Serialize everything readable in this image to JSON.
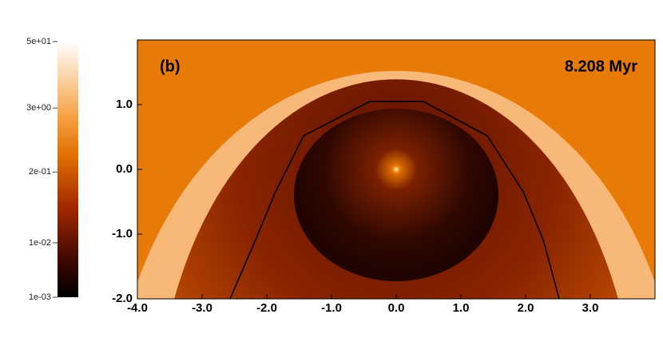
{
  "chart_data": {
    "type": "image",
    "annotations": [
      "(b)",
      "8.208 Myr"
    ],
    "xlim": [
      -4,
      4
    ],
    "ylim": [
      -2,
      2
    ],
    "xticks": [
      {
        "value": -4,
        "label": "-4.0"
      },
      {
        "value": -3,
        "label": "-3.0"
      },
      {
        "value": -2,
        "label": "-2.0"
      },
      {
        "value": -1,
        "label": "-1.0"
      },
      {
        "value": 0,
        "label": "0.0"
      },
      {
        "value": 1,
        "label": "1.0"
      },
      {
        "value": 2,
        "label": "2.0"
      },
      {
        "value": 3,
        "label": "3.0"
      }
    ],
    "yticks": [
      {
        "value": -2,
        "label": "-2.0"
      },
      {
        "value": -1,
        "label": "-1.0"
      },
      {
        "value": 0,
        "label": "0.0"
      },
      {
        "value": 1,
        "label": "1.0"
      }
    ],
    "colorbar": {
      "clim": [
        0.001,
        50
      ],
      "log": true,
      "ticks": [
        {
          "value": 50,
          "label": "5e+01"
        },
        {
          "value": 3,
          "label": "3e+00"
        },
        {
          "value": 0.2,
          "label": "2e-01"
        },
        {
          "value": 0.01,
          "label": "1e-02"
        },
        {
          "value": 0.001,
          "label": "1e-03"
        }
      ]
    }
  }
}
